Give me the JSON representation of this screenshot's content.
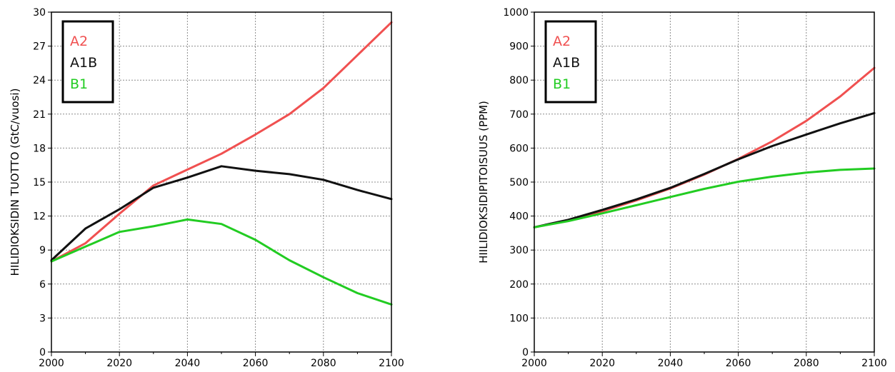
{
  "chart_data": [
    {
      "type": "line",
      "xlabel": "",
      "ylabel": "HILIDIOKSIDIN TUOTTO (GtC/vuosi)",
      "xlim": [
        2000,
        2100
      ],
      "ylim": [
        0,
        30
      ],
      "x_ticks": [
        "2000",
        "2020",
        "2040",
        "2060",
        "2080",
        "2100"
      ],
      "y_ticks": [
        "0",
        "3",
        "6",
        "9",
        "12",
        "15",
        "18",
        "21",
        "24",
        "27",
        "30"
      ],
      "grid": true,
      "legend": "top-left",
      "x": [
        2000,
        2010,
        2020,
        2030,
        2040,
        2050,
        2060,
        2070,
        2080,
        2090,
        2100
      ],
      "series": [
        {
          "name": "A2",
          "color": "#f05050",
          "values": [
            8.0,
            9.6,
            12.2,
            14.7,
            16.1,
            17.5,
            19.2,
            21.0,
            23.3,
            26.2,
            29.1
          ]
        },
        {
          "name": "A1B",
          "color": "#111111",
          "values": [
            8.1,
            10.9,
            12.6,
            14.5,
            15.4,
            16.4,
            16.0,
            15.7,
            15.2,
            14.3,
            13.5
          ]
        },
        {
          "name": "B1",
          "color": "#22cc22",
          "values": [
            8.0,
            9.3,
            10.6,
            11.1,
            11.7,
            11.3,
            9.9,
            8.1,
            6.6,
            5.2,
            4.2
          ]
        }
      ]
    },
    {
      "type": "line",
      "xlabel": "",
      "ylabel": "HIILIDIOKSIDIPITOISUUS (PPM)",
      "xlim": [
        2000,
        2100
      ],
      "ylim": [
        0,
        1000
      ],
      "x_ticks": [
        "2000",
        "2020",
        "2040",
        "2060",
        "2080",
        "2100"
      ],
      "y_ticks": [
        "0",
        "100",
        "200",
        "300",
        "400",
        "500",
        "600",
        "700",
        "800",
        "900",
        "1000"
      ],
      "grid": true,
      "legend": "top-left",
      "x": [
        2000,
        2010,
        2020,
        2030,
        2040,
        2050,
        2060,
        2070,
        2080,
        2090,
        2100
      ],
      "series": [
        {
          "name": "A2",
          "color": "#f05050",
          "values": [
            367,
            387,
            414,
            446,
            481,
            522,
            568,
            620,
            680,
            752,
            836
          ]
        },
        {
          "name": "A1B",
          "color": "#111111",
          "values": [
            367,
            389,
            418,
            449,
            483,
            524,
            567,
            606,
            640,
            673,
            703
          ]
        },
        {
          "name": "B1",
          "color": "#22cc22",
          "values": [
            367,
            385,
            408,
            432,
            456,
            480,
            501,
            516,
            528,
            536,
            540
          ]
        }
      ]
    }
  ]
}
